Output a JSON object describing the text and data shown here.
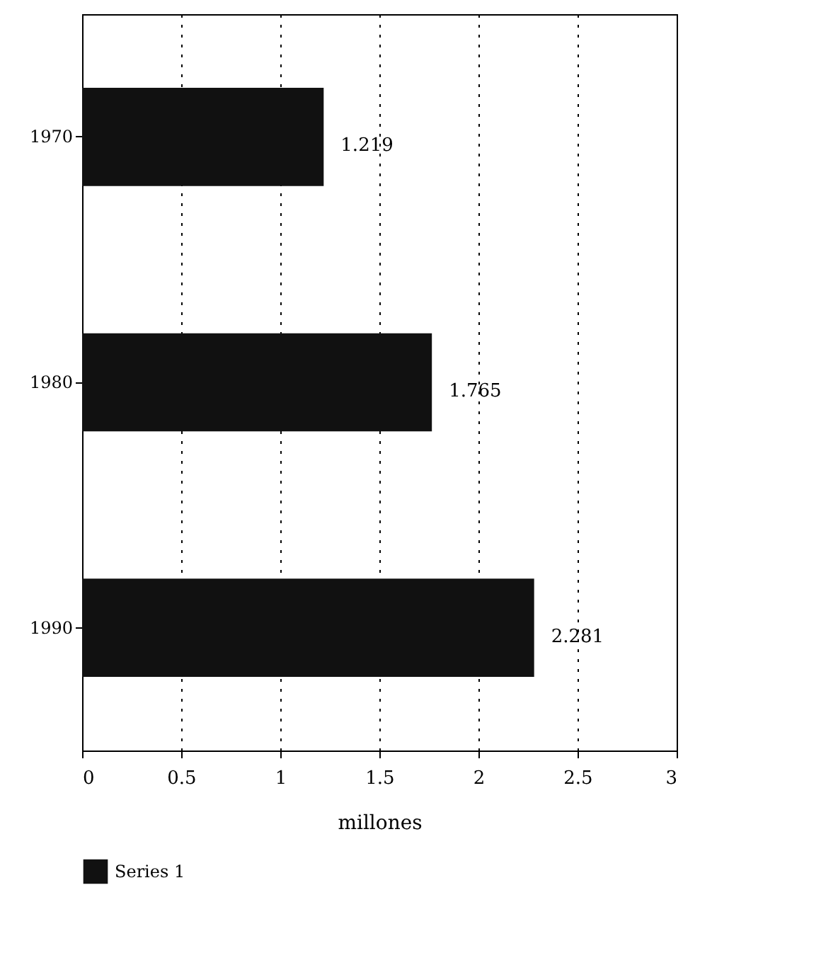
{
  "chart_data": {
    "type": "bar",
    "orientation": "horizontal",
    "xlabel": "millones",
    "categories": [
      "1970",
      "1980",
      "1990"
    ],
    "series": [
      {
        "name": "Series 1",
        "color": "#111111",
        "values": [
          1.219,
          1.765,
          2.281
        ]
      }
    ],
    "xlim": [
      0,
      3
    ],
    "xticks": [
      0,
      0.5,
      1,
      1.5,
      2,
      2.5,
      3
    ],
    "data_labels": true,
    "grid": "x",
    "legend": "bottom"
  }
}
